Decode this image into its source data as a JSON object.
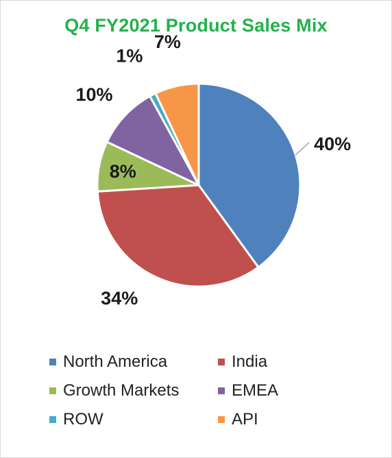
{
  "chart_data": {
    "type": "pie",
    "title": "Q4 FY2021 Product Sales Mix",
    "categories": [
      "North America",
      "India",
      "Growth Markets",
      "EMEA",
      "ROW",
      "API"
    ],
    "values": [
      40,
      34,
      8,
      10,
      1,
      7
    ],
    "value_labels": [
      "40%",
      "34%",
      "8%",
      "10%",
      "1%",
      "7%"
    ],
    "colors": [
      "#4f81bd",
      "#c0504d",
      "#9bbb59",
      "#8064a2",
      "#4bacc6",
      "#f79646"
    ],
    "start_angle_deg": 0,
    "direction": "clockwise",
    "legend_position": "bottom"
  }
}
